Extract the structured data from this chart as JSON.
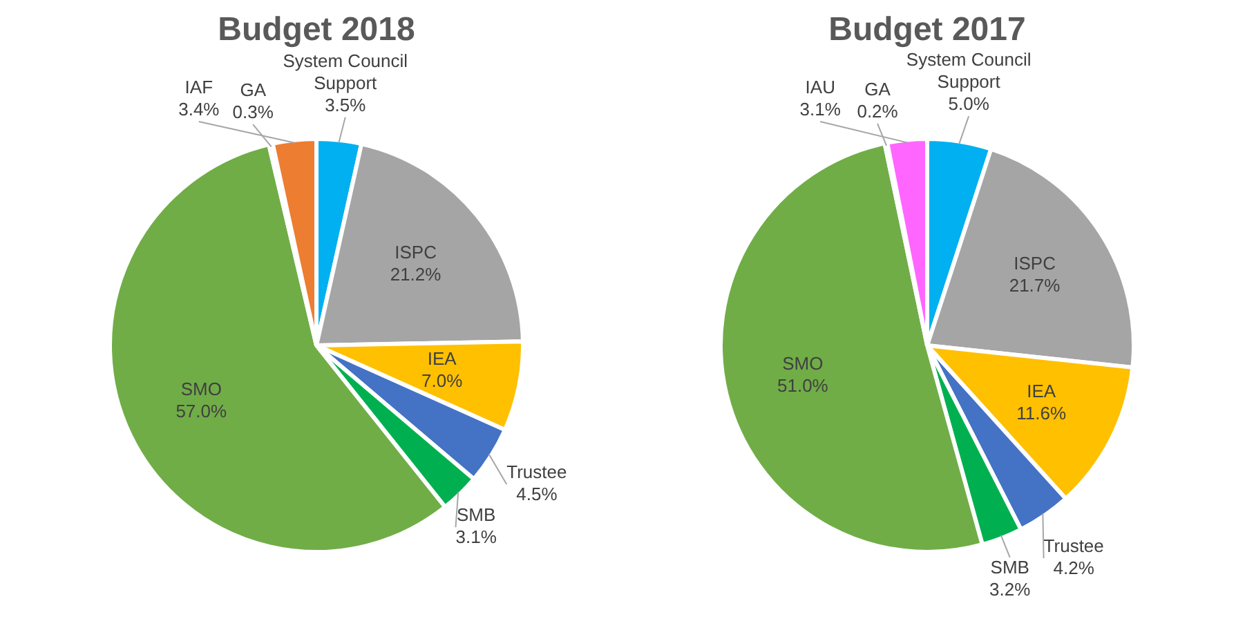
{
  "chart_data": [
    {
      "type": "pie",
      "title": "Budget 2018",
      "categories": [
        "System Council Support",
        "ISPC",
        "IEA",
        "Trustee",
        "SMB",
        "SMO",
        "GA",
        "IAF"
      ],
      "values": [
        3.5,
        21.2,
        7.0,
        4.5,
        3.1,
        57.0,
        0.3,
        3.4
      ],
      "value_labels": [
        "3.5%",
        "21.2%",
        "7.0%",
        "4.5%",
        "3.1%",
        "57.0%",
        "0.3%",
        "3.4%"
      ],
      "colors": [
        "#00b0f0",
        "#a5a5a5",
        "#ffc000",
        "#4472c4",
        "#00b050",
        "#70ad47",
        "#ffffff",
        "#ed7d31"
      ],
      "legend": false
    },
    {
      "type": "pie",
      "title": "Budget 2017",
      "categories": [
        "System Council Support",
        "ISPC",
        "IEA",
        "Trustee",
        "SMB",
        "SMO",
        "GA",
        "IAU"
      ],
      "values": [
        5.0,
        21.7,
        11.6,
        4.2,
        3.2,
        51.0,
        0.2,
        3.1
      ],
      "value_labels": [
        "5.0%",
        "21.7%",
        "11.6%",
        "4.2%",
        "3.2%",
        "51.0%",
        "0.2%",
        "3.1%"
      ],
      "colors": [
        "#00b0f0",
        "#a5a5a5",
        "#ffc000",
        "#4472c4",
        "#00b050",
        "#70ad47",
        "#ffffff",
        "#ff66ff"
      ],
      "legend": false
    }
  ]
}
